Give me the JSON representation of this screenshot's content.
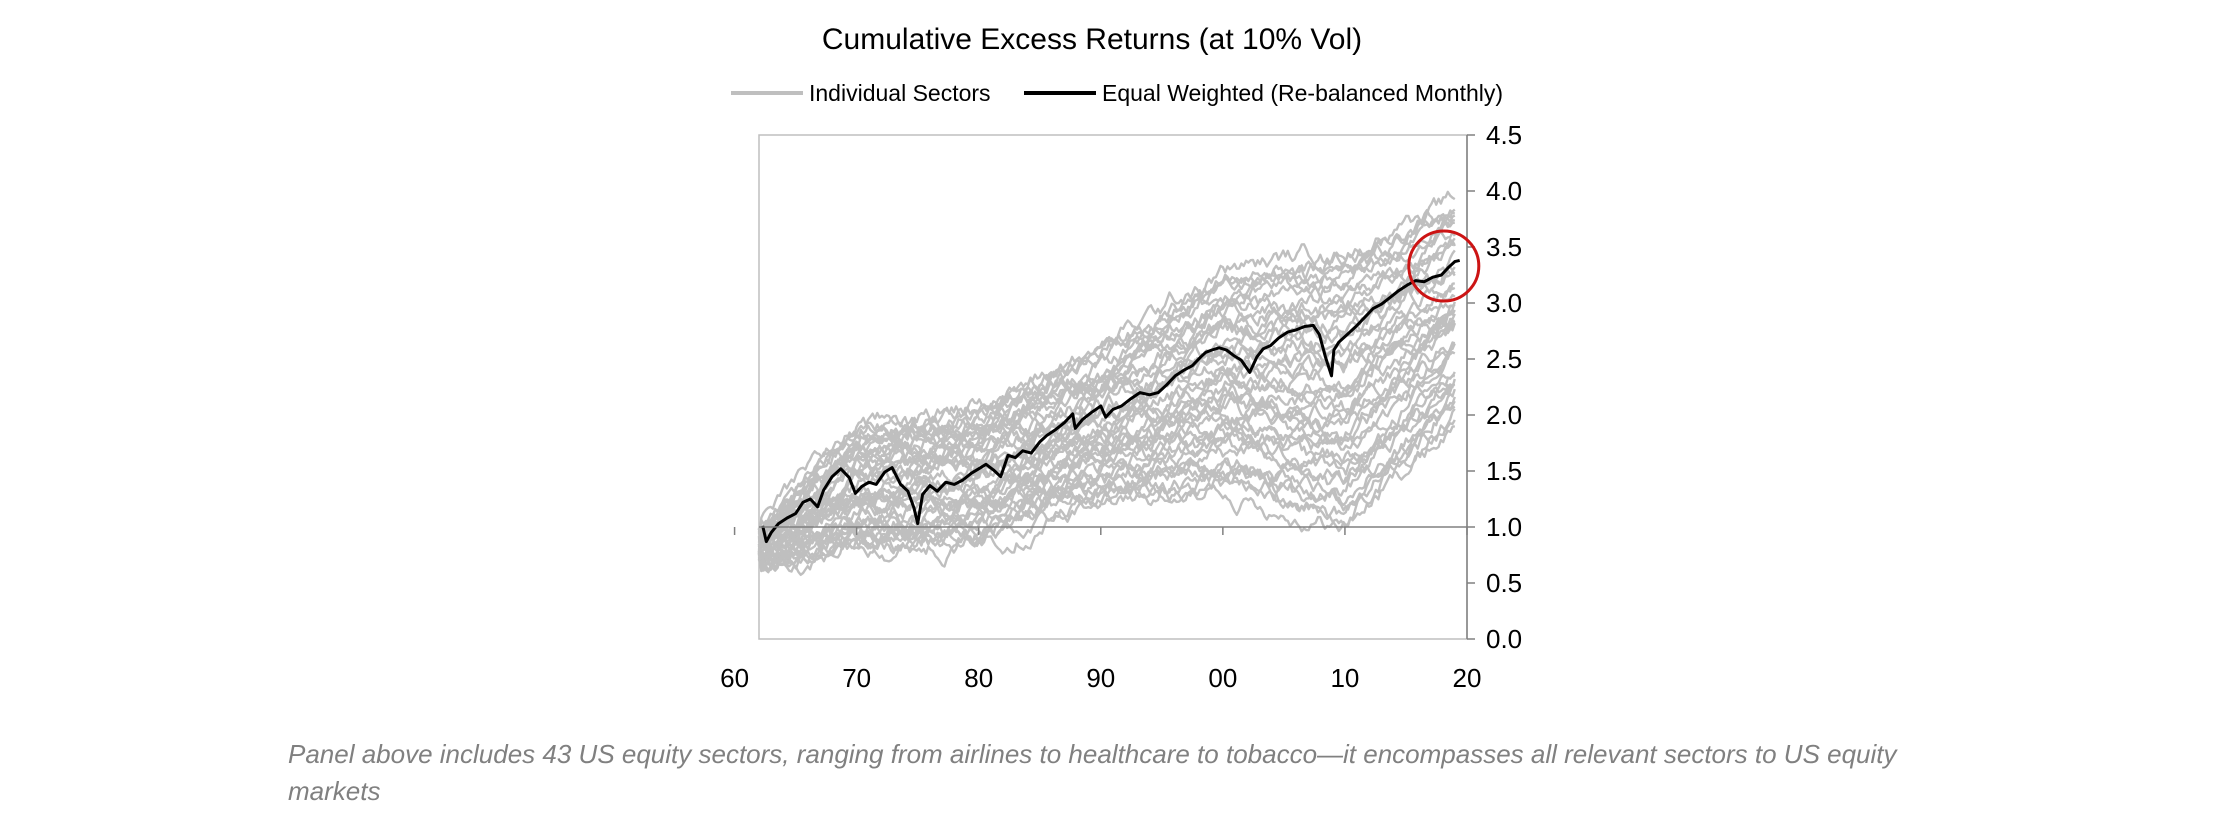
{
  "chart_data": {
    "type": "line",
    "title": "Cumulative Excess Returns (at 10% Vol)",
    "legend": {
      "placement": "top",
      "entries": [
        {
          "label": "Individual Sectors",
          "color": "#BFBFBF"
        },
        {
          "label": "Equal Weighted (Re-balanced Monthly)",
          "color": "#000000"
        }
      ]
    },
    "x_axis": {
      "range": [
        1962,
        2020
      ],
      "ticks": [
        1960,
        1970,
        1980,
        1990,
        2000,
        2010,
        2020
      ],
      "tick_labels": [
        "60",
        "70",
        "80",
        "90",
        "00",
        "10",
        "20"
      ]
    },
    "y_axis": {
      "range": [
        0.0,
        4.5
      ],
      "position": "right",
      "crosses_at": 1.0,
      "ticks": [
        0.0,
        0.5,
        1.0,
        1.5,
        2.0,
        2.5,
        3.0,
        3.5,
        4.0,
        4.5
      ],
      "tick_labels": [
        "0.0",
        "0.5",
        "1.0",
        "1.5",
        "2.0",
        "2.5",
        "3.0",
        "3.5",
        "4.0",
        "4.5"
      ]
    },
    "series": [
      {
        "name": "Equal Weighted (Re-balanced Monthly)",
        "color": "#000000",
        "x": [
          1962.3,
          1962.6,
          1963,
          1963.6,
          1964.3,
          1965,
          1965.6,
          1966.2,
          1966.8,
          1967.3,
          1968,
          1968.7,
          1969.4,
          1969.9,
          1970.4,
          1971,
          1971.6,
          1972.3,
          1972.9,
          1973.6,
          1974.2,
          1974.7,
          1975,
          1975.4,
          1976,
          1976.6,
          1977.3,
          1978,
          1978.7,
          1979.4,
          1980,
          1980.6,
          1981.2,
          1981.8,
          1982.4,
          1983,
          1983.6,
          1984.3,
          1985,
          1985.6,
          1986.3,
          1987,
          1987.7,
          1987.9,
          1988.5,
          1989.2,
          1990,
          1990.4,
          1991,
          1991.7,
          1992.4,
          1993.2,
          1994,
          1994.7,
          1995.4,
          1996.1,
          1996.8,
          1997.5,
          1998.2,
          1998.6,
          1999.1,
          1999.7,
          2000.3,
          2000.9,
          2001.5,
          2002.2,
          2002.8,
          2003.3,
          2003.9,
          2004.6,
          2005.3,
          2006,
          2006.7,
          2007.4,
          2007.9,
          2008.4,
          2008.9,
          2009.1,
          2009.5,
          2010.2,
          2010.9,
          2011.6,
          2012.3,
          2013,
          2013.7,
          2014.4,
          2015.1,
          2015.8,
          2016.5,
          2017.2,
          2017.9,
          2018.5,
          2019,
          2019.4
        ],
        "y": [
          1.01,
          0.87,
          0.95,
          1.03,
          1.08,
          1.12,
          1.22,
          1.25,
          1.18,
          1.33,
          1.45,
          1.52,
          1.44,
          1.3,
          1.36,
          1.4,
          1.38,
          1.49,
          1.53,
          1.38,
          1.32,
          1.17,
          1.03,
          1.29,
          1.37,
          1.32,
          1.4,
          1.38,
          1.42,
          1.48,
          1.52,
          1.56,
          1.51,
          1.45,
          1.64,
          1.62,
          1.68,
          1.66,
          1.76,
          1.82,
          1.87,
          1.93,
          2.01,
          1.88,
          1.96,
          2.02,
          2.08,
          1.98,
          2.05,
          2.08,
          2.14,
          2.2,
          2.18,
          2.2,
          2.27,
          2.35,
          2.4,
          2.44,
          2.52,
          2.56,
          2.58,
          2.6,
          2.58,
          2.53,
          2.49,
          2.38,
          2.52,
          2.59,
          2.62,
          2.69,
          2.74,
          2.76,
          2.79,
          2.8,
          2.72,
          2.52,
          2.35,
          2.58,
          2.65,
          2.72,
          2.79,
          2.87,
          2.95,
          2.99,
          3.05,
          3.11,
          3.16,
          3.2,
          3.19,
          3.23,
          3.25,
          3.32,
          3.37,
          3.38
        ]
      }
    ],
    "sector_band": {
      "name": "Individual Sectors",
      "count": 43,
      "color": "#BFBFBF",
      "x": [
        1962,
        1970,
        1980,
        1990,
        2000,
        2010,
        2019
      ],
      "low": [
        0.6,
        0.8,
        0.85,
        1.2,
        1.3,
        1.0,
        1.9
      ],
      "high": [
        1.0,
        1.9,
        2.1,
        2.6,
        3.3,
        3.5,
        3.9
      ]
    },
    "annotations": [
      {
        "type": "circle",
        "color": "#CC1414",
        "center_x": 2018.1,
        "center_y": 3.33
      }
    ]
  },
  "footnote": "Panel above includes 43 US equity sectors, ranging from airlines to healthcare to tobacco—it encompasses all relevant sectors to US equity markets"
}
